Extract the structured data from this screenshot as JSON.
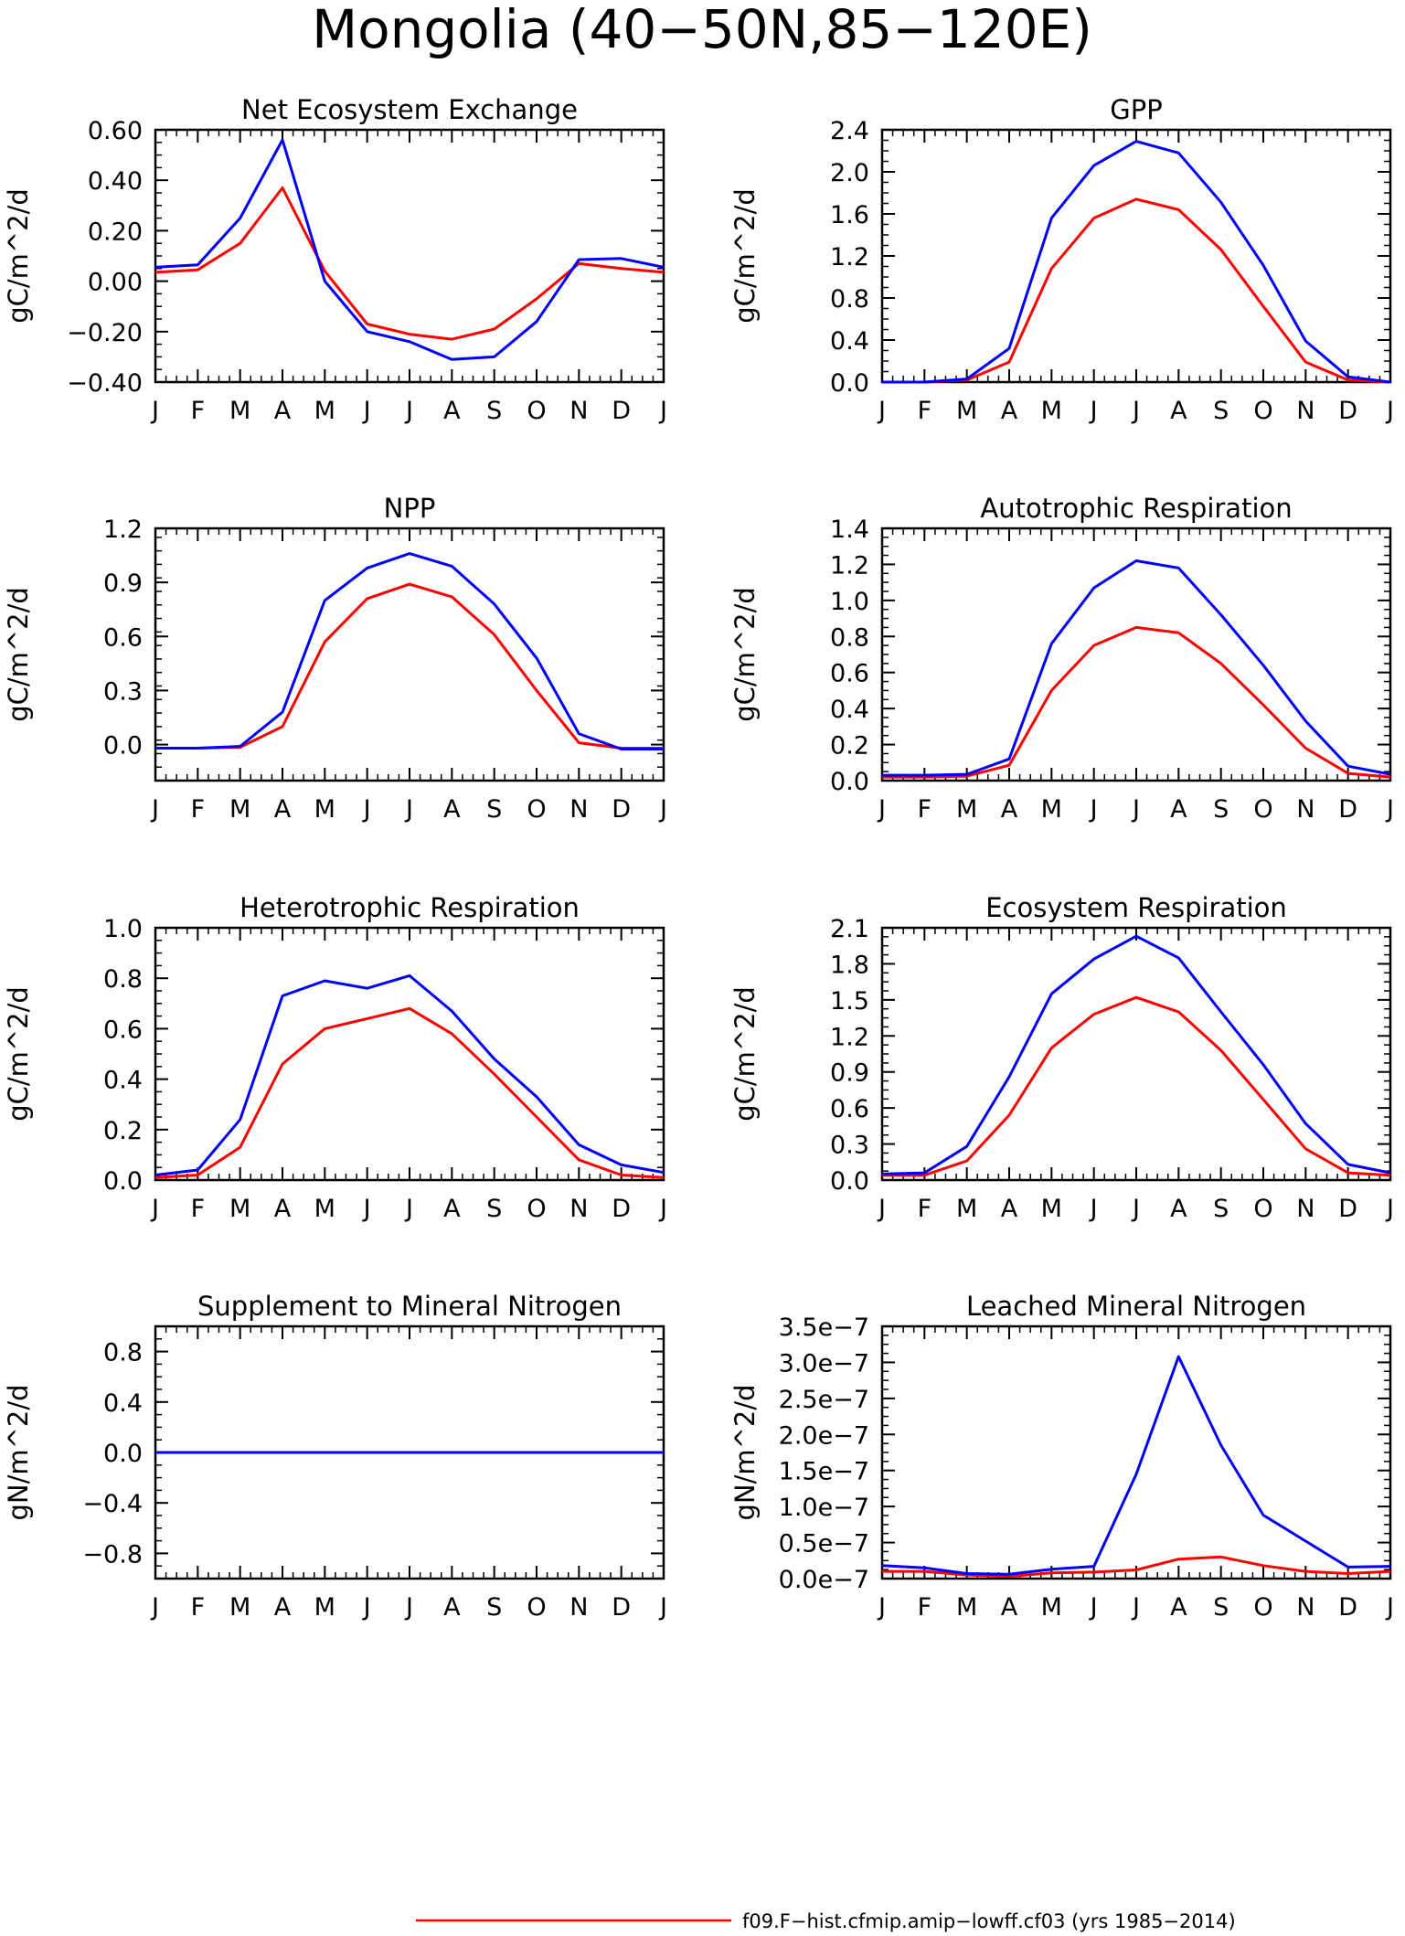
{
  "title": "Mongolia (40−50N,85−120E)",
  "colors": {
    "series_red": "#ff0000",
    "series_blue": "#0000ff",
    "axes": "#000000"
  },
  "legend": [
    {
      "label": "f09.F−hist.cfmip.amip−lowff.cf03 (yrs 1985−2014)",
      "color": "#ff0000"
    }
  ],
  "chart_data": [
    {
      "type": "line",
      "title": "Net Ecosystem Exchange",
      "ylabel": "gC/m^2/d",
      "xticks": [
        "J",
        "F",
        "M",
        "A",
        "M",
        "J",
        "J",
        "A",
        "S",
        "O",
        "N",
        "D",
        "J"
      ],
      "ylim": [
        -0.4,
        0.6
      ],
      "yticks": [
        "−0.40",
        "−0.20",
        "0.00",
        "0.20",
        "0.40",
        "0.60"
      ],
      "series": [
        {
          "color": "#ff0000",
          "values": [
            0.035,
            0.045,
            0.15,
            0.37,
            0.04,
            -0.17,
            -0.21,
            -0.23,
            -0.19,
            -0.07,
            0.07,
            0.05,
            0.035
          ]
        },
        {
          "color": "#0000ff",
          "values": [
            0.055,
            0.065,
            0.25,
            0.56,
            0.0,
            -0.2,
            -0.24,
            -0.31,
            -0.3,
            -0.16,
            0.085,
            0.09,
            0.055
          ]
        }
      ]
    },
    {
      "type": "line",
      "title": "GPP",
      "ylabel": "gC/m^2/d",
      "xticks": [
        "J",
        "F",
        "M",
        "A",
        "M",
        "J",
        "J",
        "A",
        "S",
        "O",
        "N",
        "D",
        "J"
      ],
      "ylim": [
        0,
        2.4
      ],
      "yticks": [
        "0.0",
        "0.4",
        "0.8",
        "1.2",
        "1.6",
        "2.0",
        "2.4"
      ],
      "series": [
        {
          "color": "#ff0000",
          "values": [
            0.0,
            0.0,
            0.02,
            0.19,
            1.08,
            1.56,
            1.74,
            1.64,
            1.26,
            0.72,
            0.19,
            0.02,
            0.0
          ]
        },
        {
          "color": "#0000ff",
          "values": [
            0.0,
            0.0,
            0.03,
            0.32,
            1.56,
            2.06,
            2.29,
            2.18,
            1.71,
            1.11,
            0.39,
            0.05,
            0.0
          ]
        }
      ]
    },
    {
      "type": "line",
      "title": "NPP",
      "ylabel": "gC/m^2/d",
      "xticks": [
        "J",
        "F",
        "M",
        "A",
        "M",
        "J",
        "J",
        "A",
        "S",
        "O",
        "N",
        "D",
        "J"
      ],
      "ylim": [
        -0.2,
        1.2
      ],
      "yticks": [
        "0.0",
        "0.3",
        "0.6",
        "0.9",
        "1.2"
      ],
      "series": [
        {
          "color": "#ff0000",
          "values": [
            -0.02,
            -0.02,
            -0.015,
            0.1,
            0.57,
            0.81,
            0.89,
            0.82,
            0.61,
            0.3,
            0.01,
            -0.02,
            -0.02
          ]
        },
        {
          "color": "#0000ff",
          "values": [
            -0.02,
            -0.02,
            -0.01,
            0.18,
            0.8,
            0.98,
            1.06,
            0.99,
            0.78,
            0.48,
            0.06,
            -0.025,
            -0.025
          ]
        }
      ]
    },
    {
      "type": "line",
      "title": "Autotrophic Respiration",
      "ylabel": "gC/m^2/d",
      "xticks": [
        "J",
        "F",
        "M",
        "A",
        "M",
        "J",
        "J",
        "A",
        "S",
        "O",
        "N",
        "D",
        "J"
      ],
      "ylim": [
        0,
        1.4
      ],
      "yticks": [
        "0.0",
        "0.2",
        "0.4",
        "0.6",
        "0.8",
        "1.0",
        "1.2",
        "1.4"
      ],
      "series": [
        {
          "color": "#ff0000",
          "values": [
            0.02,
            0.02,
            0.025,
            0.085,
            0.5,
            0.75,
            0.85,
            0.82,
            0.65,
            0.42,
            0.18,
            0.04,
            0.02
          ]
        },
        {
          "color": "#0000ff",
          "values": [
            0.03,
            0.03,
            0.035,
            0.12,
            0.76,
            1.07,
            1.22,
            1.18,
            0.92,
            0.64,
            0.33,
            0.08,
            0.035
          ]
        }
      ]
    },
    {
      "type": "line",
      "title": "Heterotrophic Respiration",
      "ylabel": "gC/m^2/d",
      "xticks": [
        "J",
        "F",
        "M",
        "A",
        "M",
        "J",
        "J",
        "A",
        "S",
        "O",
        "N",
        "D",
        "J"
      ],
      "ylim": [
        0,
        1.0
      ],
      "yticks": [
        "0.0",
        "0.2",
        "0.4",
        "0.6",
        "0.8",
        "1.0"
      ],
      "series": [
        {
          "color": "#ff0000",
          "values": [
            0.01,
            0.02,
            0.13,
            0.46,
            0.6,
            0.64,
            0.68,
            0.58,
            0.42,
            0.25,
            0.08,
            0.02,
            0.01
          ]
        },
        {
          "color": "#0000ff",
          "values": [
            0.02,
            0.04,
            0.24,
            0.73,
            0.79,
            0.76,
            0.81,
            0.67,
            0.48,
            0.33,
            0.14,
            0.06,
            0.03
          ]
        }
      ]
    },
    {
      "type": "line",
      "title": "Ecosystem Respiration",
      "ylabel": "gC/m^2/d",
      "xticks": [
        "J",
        "F",
        "M",
        "A",
        "M",
        "J",
        "J",
        "A",
        "S",
        "O",
        "N",
        "D",
        "J"
      ],
      "ylim": [
        0,
        2.1
      ],
      "yticks": [
        "0.0",
        "0.3",
        "0.6",
        "0.9",
        "1.2",
        "1.5",
        "1.8",
        "2.1"
      ],
      "series": [
        {
          "color": "#ff0000",
          "values": [
            0.04,
            0.04,
            0.16,
            0.54,
            1.1,
            1.38,
            1.52,
            1.4,
            1.08,
            0.67,
            0.26,
            0.06,
            0.04
          ]
        },
        {
          "color": "#0000ff",
          "values": [
            0.05,
            0.06,
            0.28,
            0.86,
            1.55,
            1.84,
            2.03,
            1.85,
            1.4,
            0.96,
            0.47,
            0.13,
            0.06
          ]
        }
      ]
    },
    {
      "type": "line",
      "title": "Supplement to Mineral Nitrogen",
      "ylabel": "gN/m^2/d",
      "xticks": [
        "J",
        "F",
        "M",
        "A",
        "M",
        "J",
        "J",
        "A",
        "S",
        "O",
        "N",
        "D",
        "J"
      ],
      "ylim": [
        -1.0,
        1.0
      ],
      "yticks": [
        "−0.8",
        "−0.4",
        "0.0",
        "0.4",
        "0.8"
      ],
      "series": [
        {
          "color": "#ff0000",
          "values": [
            0,
            0,
            0,
            0,
            0,
            0,
            0,
            0,
            0,
            0,
            0,
            0,
            0
          ]
        },
        {
          "color": "#0000ff",
          "values": [
            0,
            0,
            0,
            0,
            0,
            0,
            0,
            0,
            0,
            0,
            0,
            0,
            0
          ]
        }
      ]
    },
    {
      "type": "line",
      "title": "Leached Mineral Nitrogen",
      "ylabel": "gN/m^2/d",
      "xticks": [
        "J",
        "F",
        "M",
        "A",
        "M",
        "J",
        "J",
        "A",
        "S",
        "O",
        "N",
        "D",
        "J"
      ],
      "ylim": [
        0,
        3.5e-07
      ],
      "yticks": [
        "0.0e−7",
        "0.5e−7",
        "1.0e−7",
        "1.5e−7",
        "2.0e−7",
        "2.5e−7",
        "3.0e−7",
        "3.5e−7"
      ],
      "series": [
        {
          "color": "#ff0000",
          "values": [
            1e-08,
            1e-08,
            5e-09,
            3e-09,
            8e-09,
            9e-09,
            1.2e-08,
            2.7e-08,
            3e-08,
            1.8e-08,
            1e-08,
            7e-09,
            1e-08
          ]
        },
        {
          "color": "#0000ff",
          "values": [
            1.8e-08,
            1.5e-08,
            7e-09,
            6e-09,
            1.3e-08,
            1.7e-08,
            1.45e-07,
            3.08e-07,
            1.85e-07,
            8.8e-08,
            5.2e-08,
            1.6e-08,
            1.7e-08
          ]
        }
      ]
    }
  ]
}
